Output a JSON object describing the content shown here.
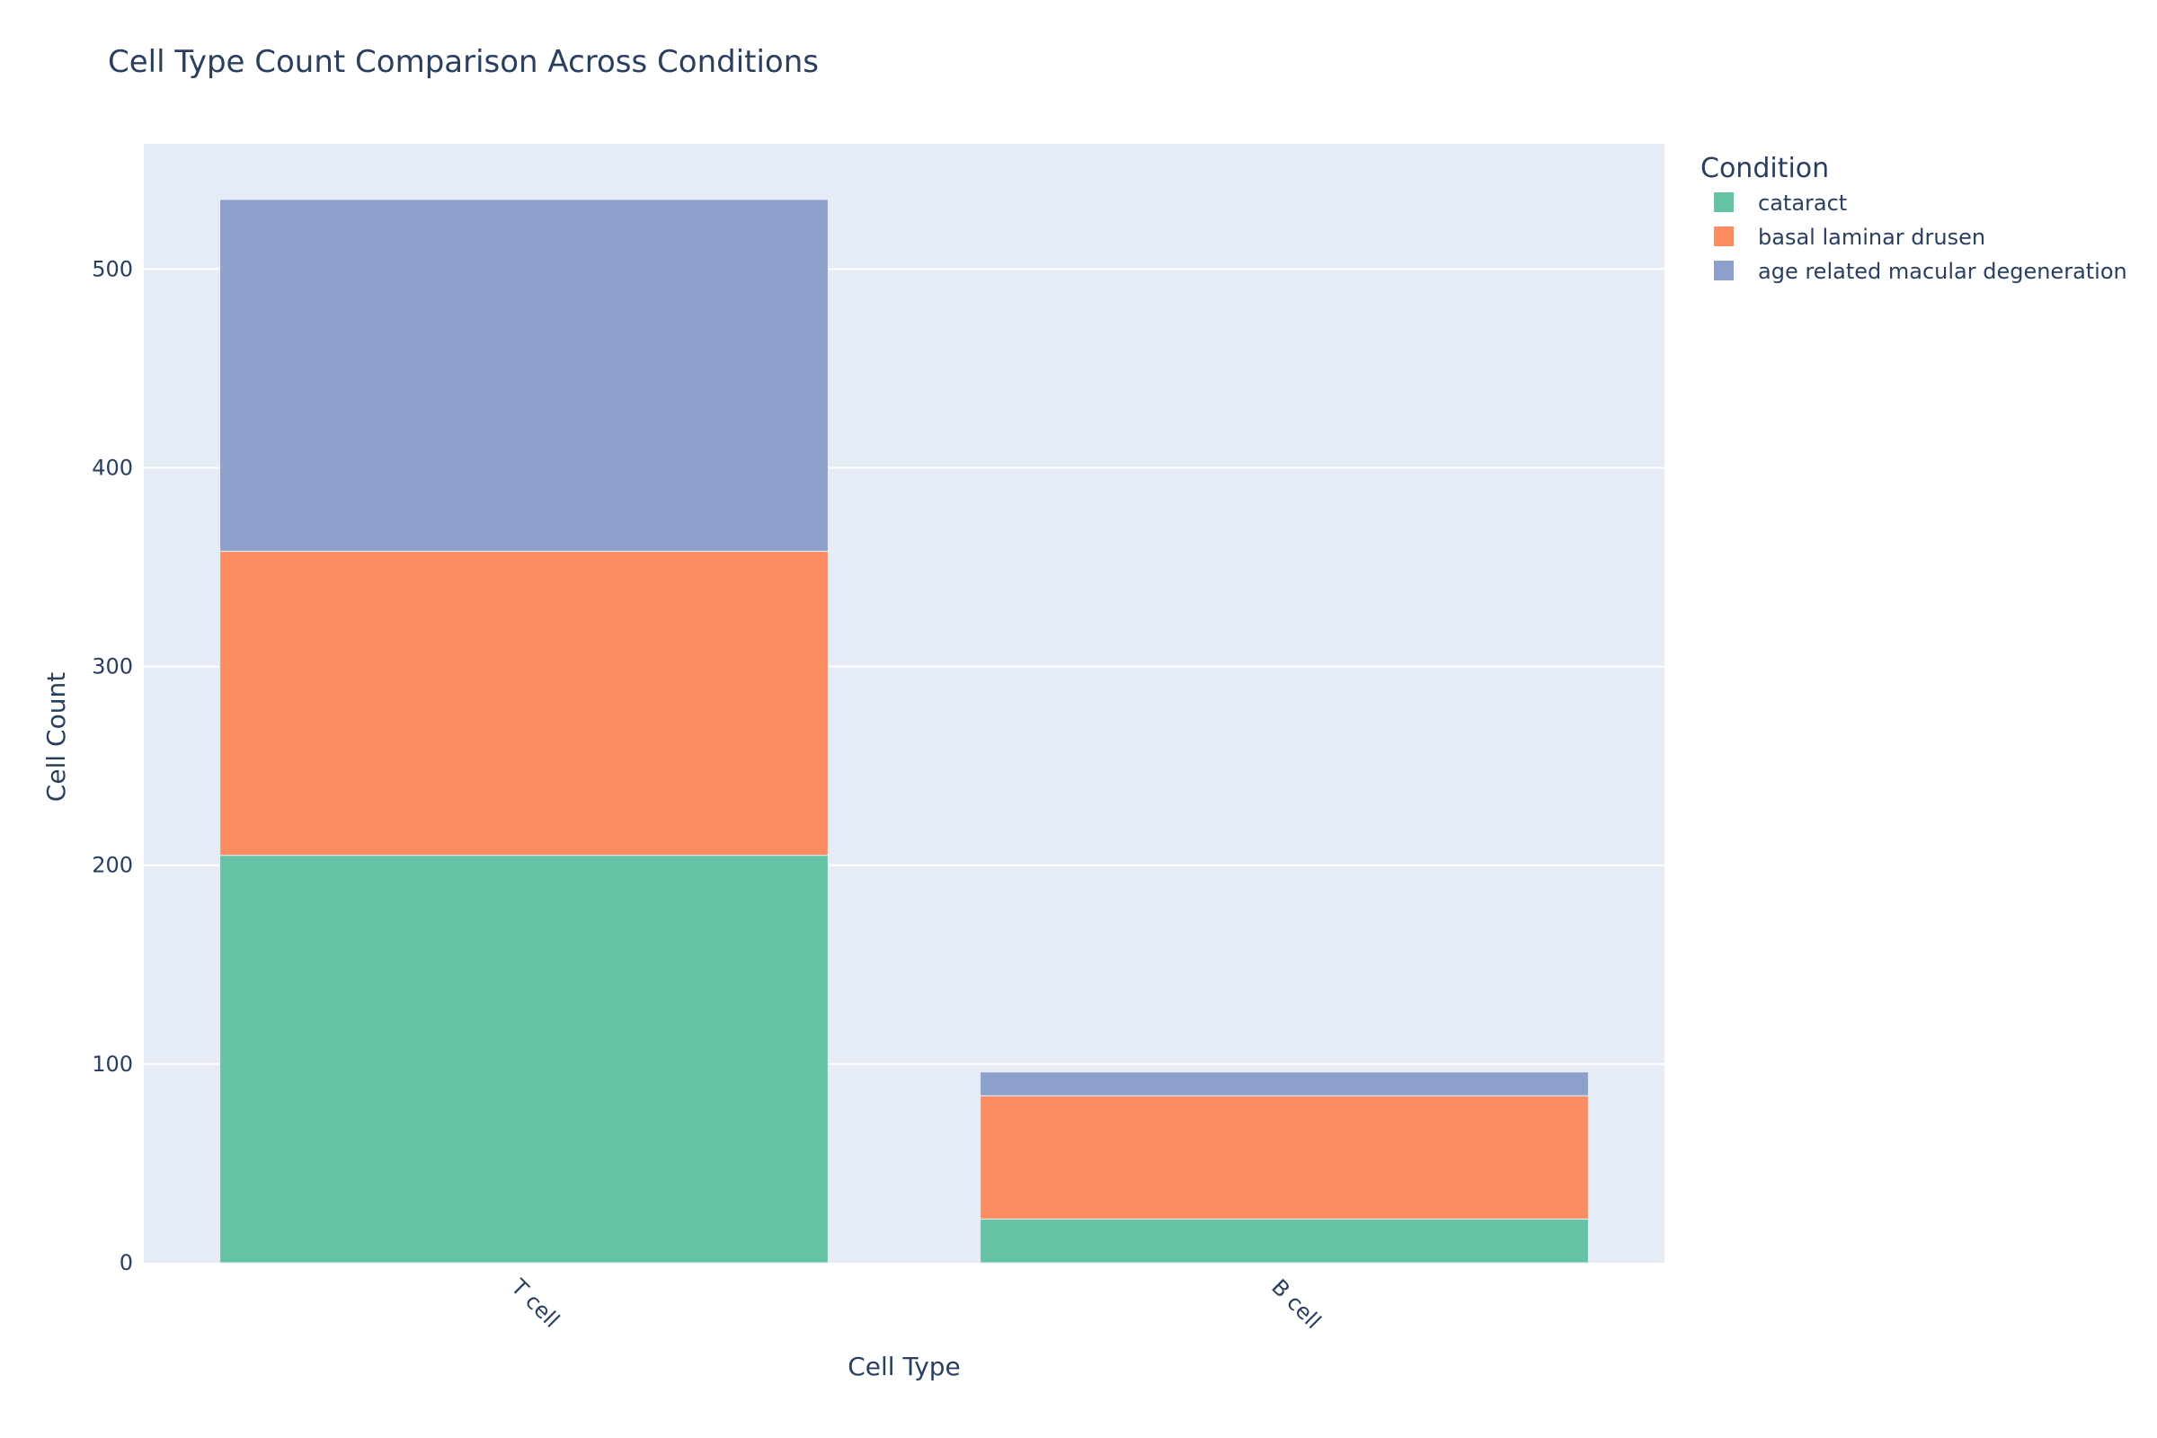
{
  "chart_data": {
    "type": "bar",
    "barmode": "stack",
    "title": "Cell Type Count Comparison Across Conditions",
    "xlabel": "Cell Type",
    "ylabel": "Cell Count",
    "categories": [
      "T cell",
      "B cell"
    ],
    "series": [
      {
        "name": "cataract",
        "values": [
          205,
          22
        ],
        "color": "#66c2a5"
      },
      {
        "name": "basal laminar drusen",
        "values": [
          153,
          62
        ],
        "color": "#fc8d62"
      },
      {
        "name": "age related macular degeneration",
        "values": [
          177,
          12
        ],
        "color": "#8da0cb"
      }
    ],
    "ylim": [
      0,
      563
    ],
    "yticks": [
      0,
      100,
      200,
      300,
      400,
      500
    ],
    "grid": true,
    "legend": {
      "title": "Condition",
      "placement": "right"
    },
    "colors": {
      "plot_background": "#e5ecf6",
      "grid": "#ffffff",
      "text": "#2a3f5f"
    }
  }
}
